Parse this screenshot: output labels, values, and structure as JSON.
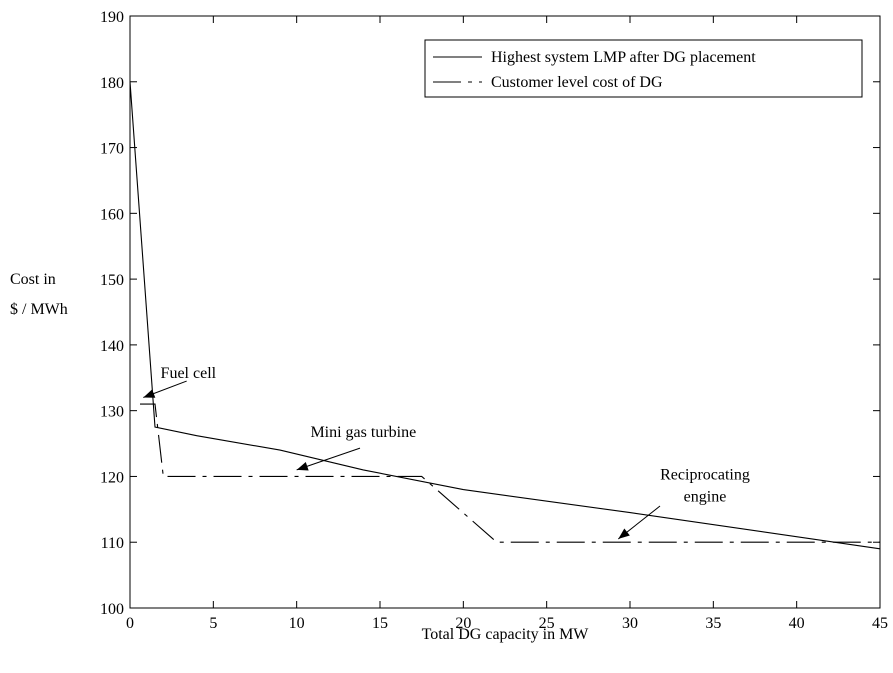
{
  "chart_data": {
    "type": "line",
    "xlabel": "Total DG capacity in MW",
    "ylabel_lines": [
      "Cost  in",
      "$ / MWh"
    ],
    "xlim": [
      0,
      45
    ],
    "ylim": [
      100,
      190
    ],
    "xticks": [
      0,
      5,
      10,
      15,
      20,
      25,
      30,
      35,
      40,
      45
    ],
    "yticks": [
      100,
      110,
      120,
      130,
      140,
      150,
      160,
      170,
      180,
      190
    ],
    "grid": false,
    "legend_position": "top-right",
    "series": [
      {
        "name": "Highest system LMP after DG placement",
        "style": "solid",
        "color": "#000000",
        "points": [
          [
            0,
            180
          ],
          [
            1.5,
            127.5
          ],
          [
            4,
            126.2
          ],
          [
            9,
            124
          ],
          [
            14,
            121
          ],
          [
            20,
            118
          ],
          [
            30,
            114.5
          ],
          [
            45,
            109
          ]
        ]
      },
      {
        "name": "Customer level cost of DG",
        "style": "dashdot",
        "color": "#000000",
        "points": [
          [
            0.6,
            131
          ],
          [
            1.5,
            131
          ],
          [
            2,
            120
          ],
          [
            17.5,
            120
          ],
          [
            22,
            110
          ],
          [
            45,
            110
          ]
        ]
      }
    ],
    "annotations": [
      {
        "text_lines": [
          "Fuel cell"
        ],
        "text_at": [
          3.5,
          135
        ],
        "arrow_from": [
          3.4,
          134.5
        ],
        "arrow_to": [
          0.8,
          132
        ]
      },
      {
        "text_lines": [
          "Mini gas turbine"
        ],
        "text_at": [
          14,
          126
        ],
        "arrow_from": [
          13.8,
          124.3
        ],
        "arrow_to": [
          10,
          121
        ]
      },
      {
        "text_lines": [
          "Reciprocating",
          "engine"
        ],
        "text_at": [
          34.5,
          119.5
        ],
        "arrow_from": [
          31.8,
          115.5
        ],
        "arrow_to": [
          29.3,
          110.5
        ]
      }
    ]
  }
}
